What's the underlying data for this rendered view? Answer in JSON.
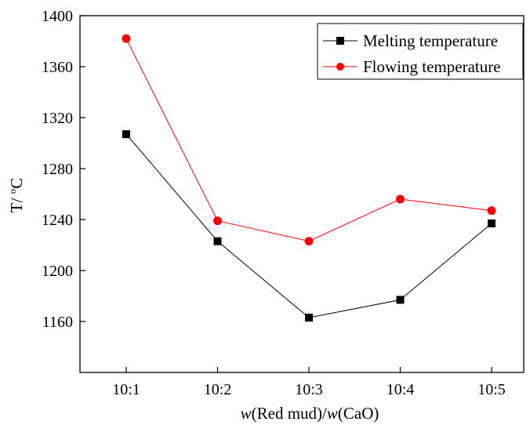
{
  "chart_data": {
    "type": "line",
    "categories": [
      "10:1",
      "10:2",
      "10:3",
      "10:4",
      "10:5"
    ],
    "series": [
      {
        "name": "Melting temperature",
        "values": [
          1307,
          1223,
          1163,
          1177,
          1237
        ],
        "color": "#000000",
        "marker": "square"
      },
      {
        "name": "Flowing temperature",
        "values": [
          1382,
          1239,
          1223,
          1256,
          1247
        ],
        "color": "#ff0000",
        "marker": "circle"
      }
    ],
    "ylim": [
      1120,
      1400
    ],
    "yticks": [
      "1160",
      "1200",
      "1240",
      "1280",
      "1320",
      "1360",
      "1400"
    ],
    "ylabel": {
      "prefix": "T/ ",
      "sup": "o",
      "unit": "C"
    },
    "xlabel": {
      "var1": "w",
      "mid": "(Red mud)/",
      "var2": "w",
      "end": "(CaO)"
    },
    "legend_position": "top-right",
    "grid": false
  }
}
